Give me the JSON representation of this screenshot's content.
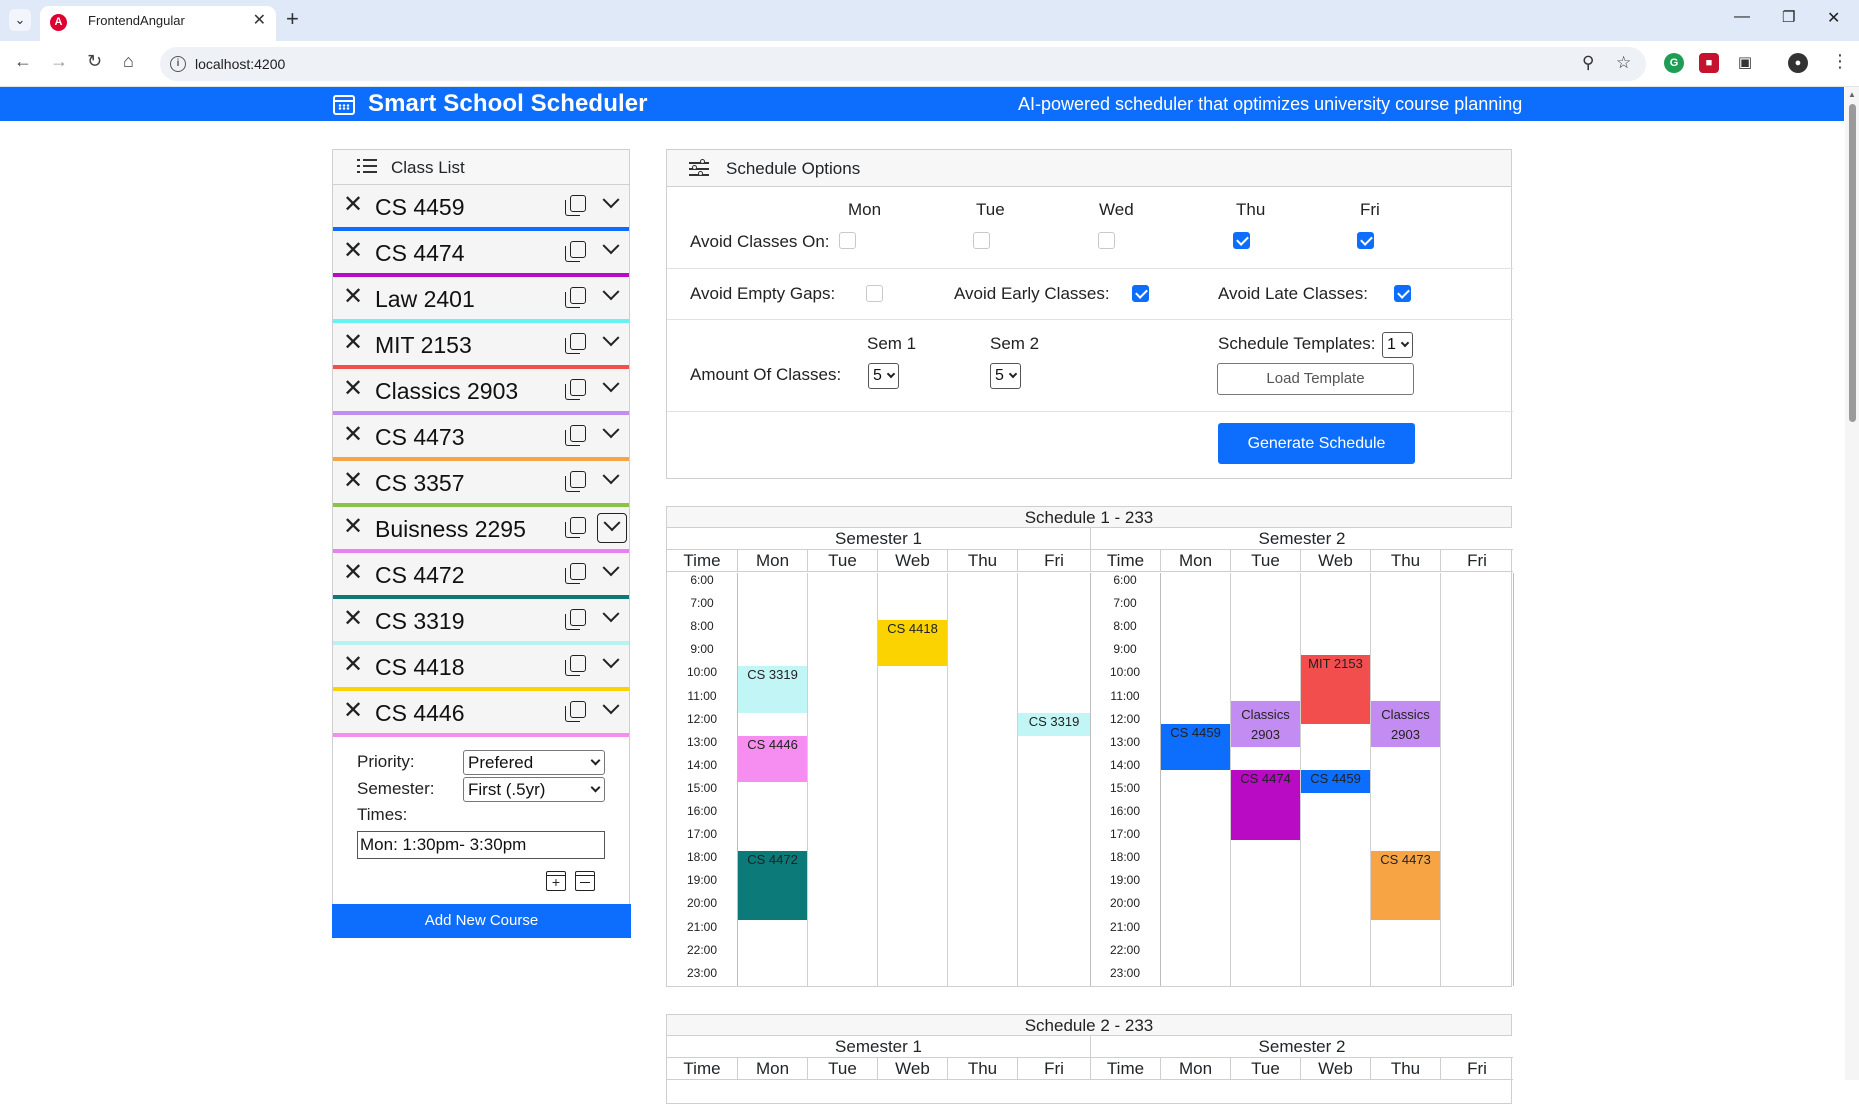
{
  "browser": {
    "tab_title": "FrontendAngular",
    "url": "localhost:4200"
  },
  "app": {
    "title": "Smart School Scheduler",
    "tagline": "AI-powered scheduler that optimizes university course planning"
  },
  "class_list": {
    "title": "Class List",
    "courses": [
      {
        "name": "CS 4459",
        "color": "#0d6efd"
      },
      {
        "name": "CS 4474",
        "color": "#b90ac4"
      },
      {
        "name": "Law 2401",
        "color": "#66f2f2"
      },
      {
        "name": "MIT 2153",
        "color": "#f24e4e"
      },
      {
        "name": "Classics 2903",
        "color": "#c38cf2"
      },
      {
        "name": "CS 4473",
        "color": "#f7a544"
      },
      {
        "name": "CS 3357",
        "color": "#8bc34a"
      },
      {
        "name": "Buisness 2295",
        "color": "#e97ff0"
      },
      {
        "name": "CS 4472",
        "color": "#0b7a78"
      },
      {
        "name": "CS 3319",
        "color": "#b8f2f2"
      },
      {
        "name": "CS 4418",
        "color": "#fbd300"
      },
      {
        "name": "CS 4446",
        "color": "#f58ef0"
      }
    ],
    "details": {
      "priority_label": "Priority:",
      "priority_value": "Prefered",
      "semester_label": "Semester:",
      "semester_value": "First (.5yr)",
      "times_label": "Times:",
      "times_value": "Mon:  1:30pm-  3:30pm"
    },
    "add_button": "Add New Course"
  },
  "options": {
    "title": "Schedule Options",
    "avoid_days_label": "Avoid Classes On:",
    "days": [
      {
        "label": "Mon",
        "checked": false
      },
      {
        "label": "Tue",
        "checked": false
      },
      {
        "label": "Wed",
        "checked": false
      },
      {
        "label": "Thu",
        "checked": true
      },
      {
        "label": "Fri",
        "checked": true
      }
    ],
    "avoid_gaps_label": "Avoid Empty Gaps:",
    "avoid_gaps": false,
    "avoid_early_label": "Avoid Early Classes:",
    "avoid_early": true,
    "avoid_late_label": "Avoid Late Classes:",
    "avoid_late": true,
    "amount_label": "Amount Of Classes:",
    "sem1_label": "Sem 1",
    "sem1_value": "5",
    "sem2_label": "Sem 2",
    "sem2_value": "5",
    "templates_label": "Schedule Templates:",
    "templates_value": "1",
    "load_template": "Load Template",
    "generate": "Generate Schedule"
  },
  "schedules": [
    {
      "title": "Schedule 1 - 233",
      "semesters": [
        {
          "label": "Semester 1",
          "days": [
            "Time",
            "Mon",
            "Tue",
            "Web",
            "Thu",
            "Fri"
          ],
          "blocks": [
            {
              "text": "CS 4418",
              "day": 2,
              "start": 8,
              "end": 10,
              "color": "#fbd300"
            },
            {
              "text": "CS 3319",
              "day": 0,
              "start": 10,
              "end": 12,
              "color": "#c2f5f5"
            },
            {
              "text": "CS 3319",
              "day": 4,
              "start": 12,
              "end": 13,
              "color": "#c2f5f5"
            },
            {
              "text": "CS 4446",
              "day": 0,
              "start": 13,
              "end": 15,
              "color": "#f58ef0"
            },
            {
              "text": "CS 4472",
              "day": 0,
              "start": 18,
              "end": 21,
              "color": "#0b7a78"
            }
          ]
        },
        {
          "label": "Semester 2",
          "days": [
            "Time",
            "Mon",
            "Tue",
            "Web",
            "Thu",
            "Fri"
          ],
          "blocks": [
            {
              "text": "MIT 2153",
              "day": 2,
              "start": 9.5,
              "end": 12.5,
              "color": "#f24e4e"
            },
            {
              "text": "Classics 2903",
              "day": 1,
              "start": 11.5,
              "end": 13.5,
              "color": "#c38cf2"
            },
            {
              "text": "Classics 2903",
              "day": 3,
              "start": 11.5,
              "end": 13.5,
              "color": "#c38cf2"
            },
            {
              "text": "CS 4459",
              "day": 0,
              "start": 12.5,
              "end": 14.5,
              "color": "#0d6efd"
            },
            {
              "text": "CS 4474",
              "day": 1,
              "start": 14.5,
              "end": 17.5,
              "color": "#b90ac4"
            },
            {
              "text": "CS 4459",
              "day": 2,
              "start": 14.5,
              "end": 15.5,
              "color": "#0d6efd"
            },
            {
              "text": "CS 4473",
              "day": 3,
              "start": 18,
              "end": 21,
              "color": "#f7a544"
            }
          ]
        }
      ],
      "hours": [
        "6:00",
        "7:00",
        "8:00",
        "9:00",
        "10:00",
        "11:00",
        "12:00",
        "13:00",
        "14:00",
        "15:00",
        "16:00",
        "17:00",
        "18:00",
        "19:00",
        "20:00",
        "21:00",
        "22:00",
        "23:00"
      ]
    },
    {
      "title": "Schedule 2 - 233",
      "semesters": [
        {
          "label": "Semester 1",
          "days": [
            "Time",
            "Mon",
            "Tue",
            "Web",
            "Thu",
            "Fri"
          ]
        },
        {
          "label": "Semester 2",
          "days": [
            "Time",
            "Mon",
            "Tue",
            "Web",
            "Thu",
            "Fri"
          ]
        }
      ]
    }
  ]
}
